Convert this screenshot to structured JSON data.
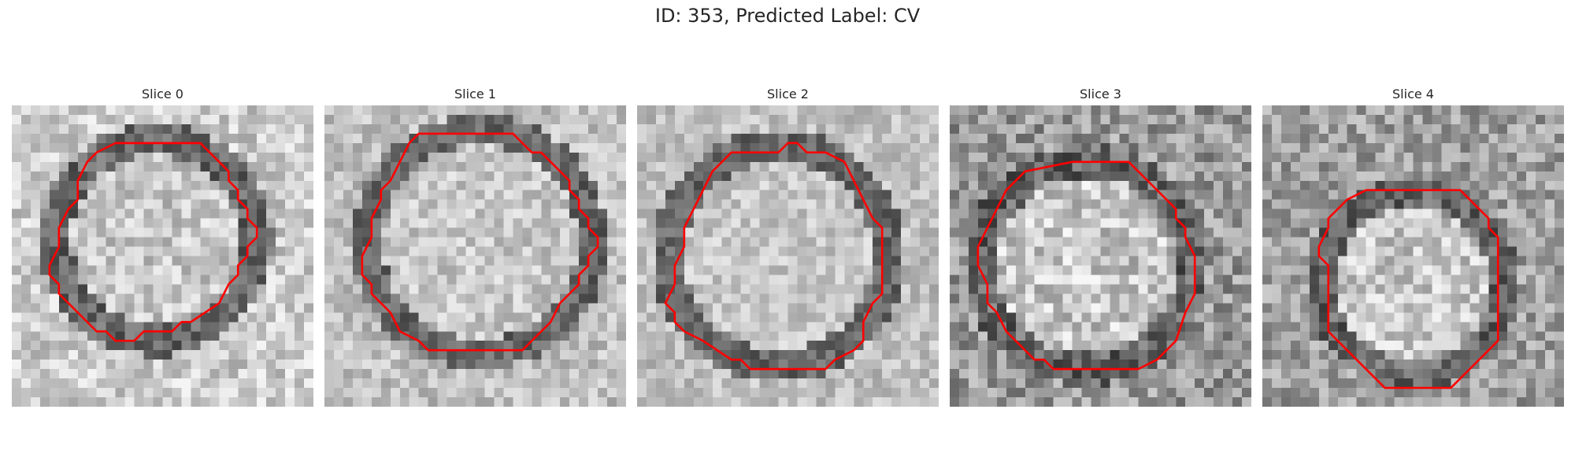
{
  "figure": {
    "title": "ID: 353, Predicted Label: CV",
    "contour_color": "#ff0000",
    "colormap": "grayscale"
  },
  "slices": [
    {
      "label": "Slice 0",
      "contour": [
        [
          11,
          4
        ],
        [
          20,
          4
        ],
        [
          22,
          6
        ],
        [
          23,
          7
        ],
        [
          23,
          8
        ],
        [
          24,
          9
        ],
        [
          24,
          10
        ],
        [
          25,
          11
        ],
        [
          25,
          12
        ],
        [
          26,
          13
        ],
        [
          26,
          14
        ],
        [
          25,
          15
        ],
        [
          25,
          16
        ],
        [
          24,
          17
        ],
        [
          24,
          18
        ],
        [
          23,
          19
        ],
        [
          22,
          21
        ],
        [
          19,
          23
        ],
        [
          18,
          23
        ],
        [
          17,
          24
        ],
        [
          14,
          24
        ],
        [
          13,
          25
        ],
        [
          11,
          25
        ],
        [
          10,
          24
        ],
        [
          9,
          24
        ],
        [
          6,
          21
        ],
        [
          5,
          20
        ],
        [
          5,
          19
        ],
        [
          4,
          18
        ],
        [
          4,
          17
        ],
        [
          5,
          15
        ],
        [
          5,
          13
        ],
        [
          6,
          11
        ],
        [
          7,
          10
        ],
        [
          7,
          8
        ],
        [
          8,
          6
        ],
        [
          9,
          5
        ]
      ]
    },
    {
      "label": "Slice 1",
      "contour": [
        [
          10,
          3
        ],
        [
          20,
          3
        ],
        [
          21,
          4
        ],
        [
          22,
          5
        ],
        [
          23,
          5
        ],
        [
          24,
          6
        ],
        [
          25,
          7
        ],
        [
          26,
          8
        ],
        [
          26,
          9
        ],
        [
          27,
          10
        ],
        [
          27,
          11
        ],
        [
          28,
          12
        ],
        [
          28,
          13
        ],
        [
          29,
          14
        ],
        [
          29,
          15
        ],
        [
          28,
          16
        ],
        [
          28,
          17
        ],
        [
          27,
          18
        ],
        [
          27,
          19
        ],
        [
          26,
          20
        ],
        [
          25,
          21
        ],
        [
          24,
          23
        ],
        [
          22,
          25
        ],
        [
          21,
          26
        ],
        [
          11,
          26
        ],
        [
          10,
          25
        ],
        [
          8,
          24
        ],
        [
          7,
          22
        ],
        [
          6,
          21
        ],
        [
          5,
          20
        ],
        [
          5,
          19
        ],
        [
          4,
          18
        ],
        [
          4,
          16
        ],
        [
          5,
          14
        ],
        [
          5,
          12
        ],
        [
          6,
          10
        ],
        [
          6,
          9
        ],
        [
          7,
          8
        ],
        [
          8,
          6
        ],
        [
          9,
          4
        ]
      ]
    },
    {
      "label": "Slice 2",
      "contour": [
        [
          10,
          5
        ],
        [
          15,
          5
        ],
        [
          16,
          4
        ],
        [
          17,
          4
        ],
        [
          18,
          5
        ],
        [
          20,
          5
        ],
        [
          22,
          6
        ],
        [
          23,
          8
        ],
        [
          24,
          10
        ],
        [
          25,
          12
        ],
        [
          26,
          13
        ],
        [
          26,
          20
        ],
        [
          25,
          21
        ],
        [
          24,
          23
        ],
        [
          24,
          25
        ],
        [
          23,
          26
        ],
        [
          21,
          27
        ],
        [
          20,
          28
        ],
        [
          12,
          28
        ],
        [
          11,
          27
        ],
        [
          10,
          27
        ],
        [
          7,
          25
        ],
        [
          5,
          24
        ],
        [
          4,
          23
        ],
        [
          4,
          22
        ],
        [
          3,
          21
        ],
        [
          4,
          19
        ],
        [
          4,
          17
        ],
        [
          5,
          15
        ],
        [
          5,
          13
        ],
        [
          6,
          11
        ],
        [
          7,
          9
        ],
        [
          8,
          7
        ]
      ]
    },
    {
      "label": "Slice 3",
      "contour": [
        [
          13,
          6
        ],
        [
          19,
          6
        ],
        [
          20,
          7
        ],
        [
          21,
          8
        ],
        [
          22,
          9
        ],
        [
          23,
          10
        ],
        [
          24,
          11
        ],
        [
          24,
          12
        ],
        [
          25,
          13
        ],
        [
          25,
          14
        ],
        [
          26,
          16
        ],
        [
          26,
          20
        ],
        [
          25,
          22
        ],
        [
          24,
          25
        ],
        [
          23,
          26
        ],
        [
          22,
          27
        ],
        [
          20,
          28
        ],
        [
          11,
          28
        ],
        [
          10,
          27
        ],
        [
          9,
          27
        ],
        [
          7,
          25
        ],
        [
          6,
          24
        ],
        [
          5,
          22
        ],
        [
          4,
          21
        ],
        [
          4,
          19
        ],
        [
          3,
          17
        ],
        [
          3,
          15
        ],
        [
          4,
          13
        ],
        [
          5,
          11
        ],
        [
          6,
          9
        ],
        [
          8,
          7
        ]
      ]
    },
    {
      "label": "Slice 4",
      "contour": [
        [
          11,
          9
        ],
        [
          21,
          9
        ],
        [
          22,
          10
        ],
        [
          23,
          11
        ],
        [
          24,
          12
        ],
        [
          24,
          13
        ],
        [
          25,
          14
        ],
        [
          25,
          25
        ],
        [
          23,
          27
        ],
        [
          22,
          28
        ],
        [
          20,
          30
        ],
        [
          13,
          30
        ],
        [
          10,
          27
        ],
        [
          9,
          26
        ],
        [
          7,
          24
        ],
        [
          7,
          22
        ],
        [
          7,
          17
        ],
        [
          6,
          16
        ],
        [
          6,
          15
        ],
        [
          7,
          13
        ],
        [
          7,
          12
        ],
        [
          8,
          11
        ],
        [
          9,
          10
        ]
      ]
    }
  ]
}
